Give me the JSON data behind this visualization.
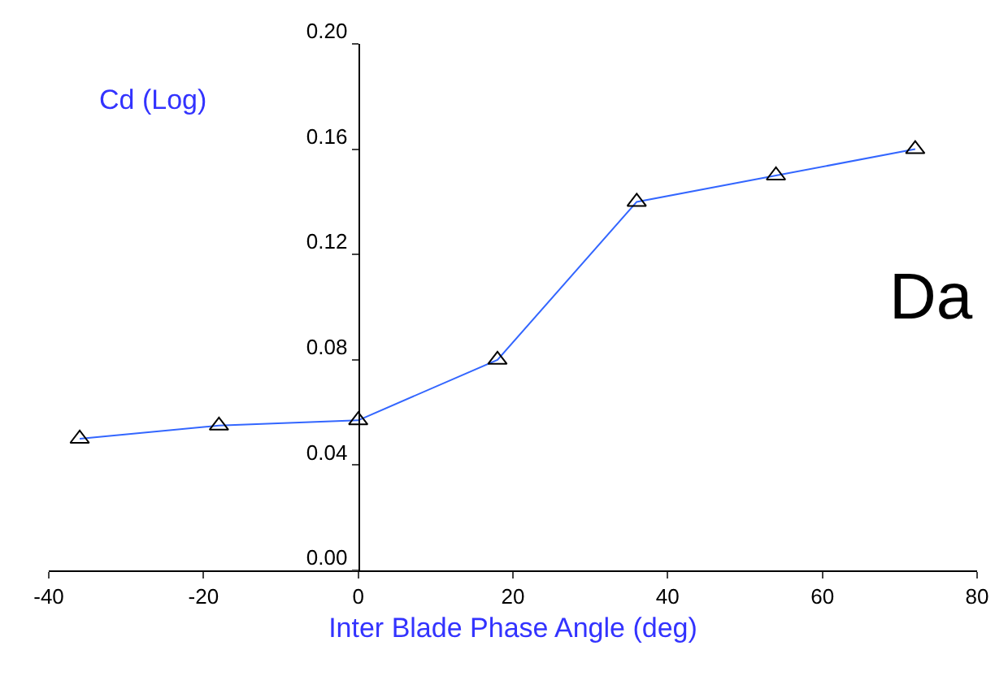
{
  "chart_data": {
    "type": "line",
    "xlabel": "Inter Blade Phase Angle (deg)",
    "ylabel": "Cd (Log)",
    "x": [
      -36,
      -18,
      0,
      18,
      36,
      54,
      72
    ],
    "series": [
      {
        "color": "#3366ff",
        "values": [
          0.05,
          0.055,
          0.057,
          0.08,
          0.14,
          0.15,
          0.16
        ]
      }
    ],
    "xlim": [
      -40,
      80
    ],
    "xticks": [
      -40,
      -20,
      0,
      20,
      40,
      60,
      80
    ],
    "ylim": [
      0,
      0.2
    ],
    "yticks": [
      {
        "value": 0,
        "label": "0.00"
      },
      {
        "value": 0.04,
        "label": "0.04"
      },
      {
        "value": 0.08,
        "label": "0.08"
      },
      {
        "value": 0.12,
        "label": "0.12"
      },
      {
        "value": 0.16,
        "label": "0.16"
      },
      {
        "value": 0.2,
        "label": "0.20"
      }
    ],
    "marker": "triangle",
    "line_style": "solid",
    "annotations": [
      "Da"
    ]
  }
}
